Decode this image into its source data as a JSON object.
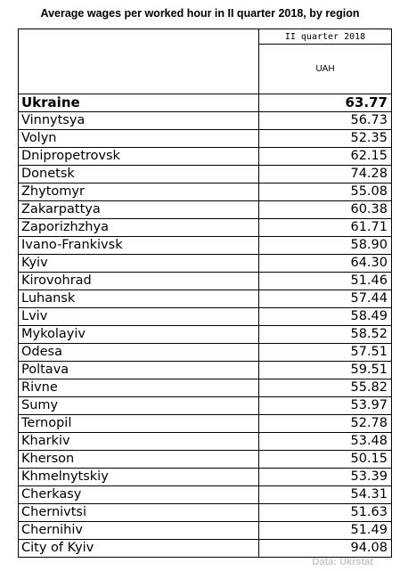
{
  "title": "Average wages per worked hour in II quarter 2018, by region",
  "table": {
    "period_header": "II quarter 2018",
    "unit_header": "UAH",
    "rows": [
      {
        "region": "Ukraine",
        "value": "63.77",
        "total": true
      },
      {
        "region": "Vinnytsya",
        "value": "56.73"
      },
      {
        "region": "Volyn",
        "value": "52.35"
      },
      {
        "region": "Dnipropetrovsk",
        "value": "62.15"
      },
      {
        "region": "Donetsk",
        "value": "74.28"
      },
      {
        "region": "Zhytomyr",
        "value": "55.08"
      },
      {
        "region": "Zakarpattya",
        "value": "60.38"
      },
      {
        "region": "Zaporizhzhya",
        "value": "61.71"
      },
      {
        "region": "Ivano-Frankivsk",
        "value": "58.90"
      },
      {
        "region": "Kyiv",
        "value": "64.30"
      },
      {
        "region": "Kirovohrad",
        "value": "51.46"
      },
      {
        "region": "Luhansk",
        "value": "57.44"
      },
      {
        "region": "Lviv",
        "value": "58.49"
      },
      {
        "region": "Mykolayiv",
        "value": "58.52"
      },
      {
        "region": "Odesa",
        "value": "57.51"
      },
      {
        "region": "Poltava",
        "value": "59.51"
      },
      {
        "region": "Rivne",
        "value": "55.82"
      },
      {
        "region": "Sumy",
        "value": "53.97"
      },
      {
        "region": "Ternopil",
        "value": "52.78"
      },
      {
        "region": "Kharkiv",
        "value": "53.48"
      },
      {
        "region": "Kherson",
        "value": "50.15"
      },
      {
        "region": "Khmelnytskiy",
        "value": "53.39"
      },
      {
        "region": "Cherkasy",
        "value": "54.31"
      },
      {
        "region": "Chernivtsi",
        "value": "51.63"
      },
      {
        "region": "Chernihiv",
        "value": "51.49"
      },
      {
        "region": "City of Kyiv",
        "value": "94.08"
      }
    ]
  },
  "source": "Data: Ukrstat"
}
